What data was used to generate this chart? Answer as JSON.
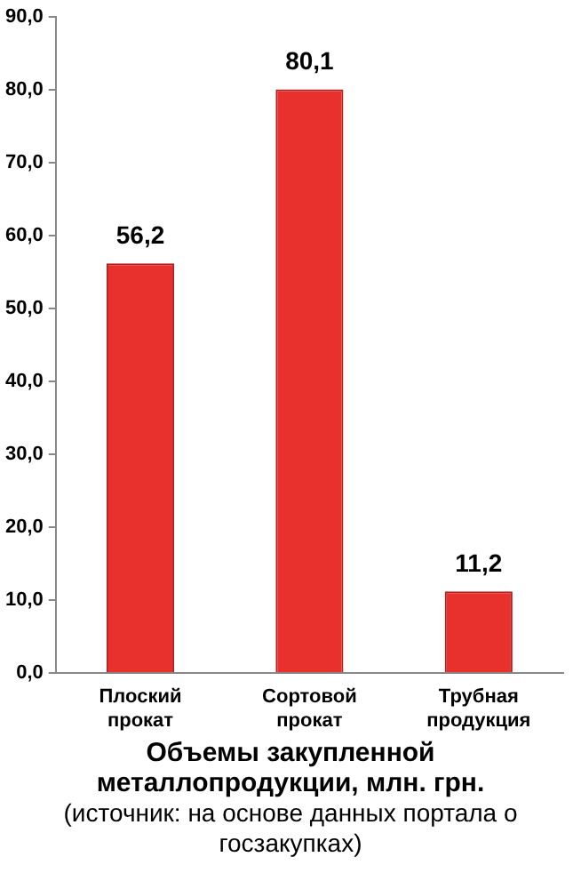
{
  "chart_data": {
    "type": "bar",
    "title": "Объемы закупленной металлопродукции, млн. грн.",
    "annotations": [
      "(источник: на основе данных портала о госзакупках)"
    ],
    "categories": [
      "Плоский  прокат",
      "Сортовой прокат",
      "Трубная продукция"
    ],
    "values": [
      56.2,
      80.1,
      11.2
    ],
    "value_labels": [
      "56,2",
      "80,1",
      "11,2"
    ],
    "color": "#e8312c",
    "ylim": [
      0,
      90
    ],
    "yticks": [
      {
        "value": 0,
        "label": "0,0"
      },
      {
        "value": 10,
        "label": "10,0"
      },
      {
        "value": 20,
        "label": "20,0"
      },
      {
        "value": 30,
        "label": "30,0"
      },
      {
        "value": 40,
        "label": "40,0"
      },
      {
        "value": 50,
        "label": "50,0"
      },
      {
        "value": 60,
        "label": "60,0"
      },
      {
        "value": 70,
        "label": "70,0"
      },
      {
        "value": 80,
        "label": "80,0"
      },
      {
        "value": 90,
        "label": "90,0"
      }
    ],
    "grid": false,
    "legend": false
  }
}
